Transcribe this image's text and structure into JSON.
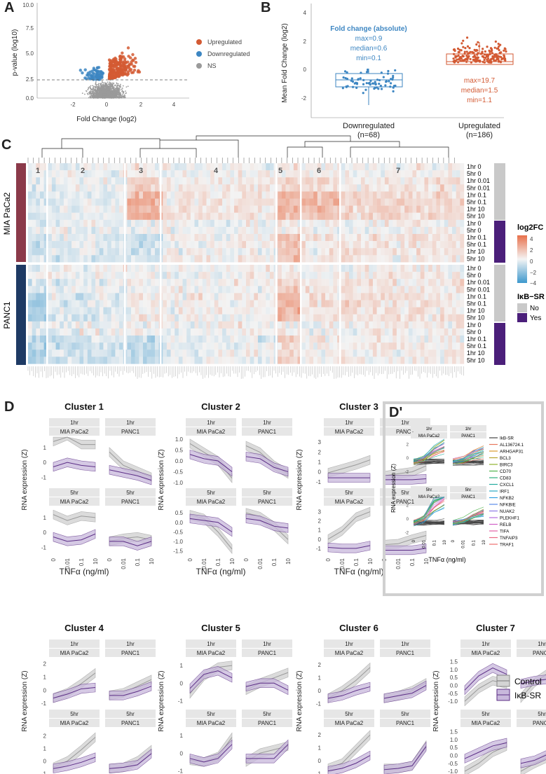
{
  "panels": {
    "A": "A",
    "B": "B",
    "C": "C",
    "D": "D",
    "Dp": "D'"
  },
  "colors": {
    "up": "#d35a33",
    "down": "#3d86c2",
    "ns": "#9a9a9a",
    "control": "#999999",
    "ikb": "#5c2e86",
    "mia": "#8b3a4a",
    "panc": "#1e3a64",
    "yes": "#4b1f7a",
    "no": "#c9c9c9"
  },
  "volcano": {
    "ylabel": "p-value (log10)",
    "xlabel": "Fold Change (log2)",
    "yticks": [
      "0.0",
      "2.5",
      "5.0",
      "7.5",
      "10.0"
    ],
    "xticks": [
      "-2",
      "0",
      "2",
      "4"
    ],
    "legend": [
      "Upregulated",
      "Downregulated",
      "NS"
    ]
  },
  "boxplot": {
    "ylabel": "Mean Fold Change (log2)",
    "yticks": [
      "4",
      "2",
      "0",
      "-2"
    ],
    "groups": [
      {
        "name": "Downregulated",
        "n": "(n=68)",
        "ann_title": "Fold change (absolute)",
        "ann": [
          "max=0.9",
          "median=0.6",
          "min=0.1"
        ]
      },
      {
        "name": "Upregulated",
        "n": "(n=186)",
        "ann_title": "",
        "ann": [
          "max=19.7",
          "median=1.5",
          "min=1.1"
        ]
      }
    ]
  },
  "heatmap": {
    "clusters": [
      "1",
      "2",
      "3",
      "4",
      "5",
      "6",
      "7"
    ],
    "mia_label": "MIA PaCa2",
    "panc_label": "PANC1",
    "row_labels": [
      "1hr 0",
      "5hr 0",
      "1hr 0.01",
      "5hr 0.01",
      "1hr 0.1",
      "5hr 0.1",
      "1hr 10",
      "5hr 10",
      "1hr 0",
      "5hr 0",
      "1hr 0.1",
      "5hr 0.1",
      "1hr 10",
      "5hr 10"
    ],
    "legend_title": "log2FC",
    "legend_ticks": [
      "4",
      "2",
      "0",
      "−2",
      "−4"
    ],
    "ikb_title": "IκB−SR",
    "ikb_levels": [
      "No",
      "Yes"
    ]
  },
  "clusters": {
    "ylabel": "RNA expression (Z)",
    "xlabel": "TNFα (ng/ml)",
    "xticks": [
      "0",
      "0.01",
      "0.1",
      "10"
    ],
    "strips": {
      "t1": "1hr",
      "t5": "5hr",
      "mia": "MIA PaCa2",
      "panc": "PANC1"
    },
    "titles": [
      "Cluster 1",
      "Cluster 2",
      "Cluster 3",
      "Cluster 4",
      "Cluster 5",
      "Cluster 6",
      "Cluster 7"
    ],
    "yticks": [
      [
        [
          "1",
          "0",
          "-1"
        ],
        [
          "1",
          "0",
          "-1"
        ]
      ],
      [
        [
          "1.0",
          "0.5",
          "0.0",
          "-0.5",
          "-1.0"
        ],
        [
          "0.5",
          "0.0",
          "-0.5",
          "-1.0",
          "-1.5"
        ]
      ],
      [
        [
          "3",
          "2",
          "1",
          "0",
          "-1"
        ],
        [
          "3",
          "2",
          "1",
          "0",
          "-1"
        ]
      ],
      [
        [
          "2",
          "1",
          "0",
          "-1"
        ],
        [
          "2",
          "1",
          "0",
          "-1"
        ]
      ],
      [
        [
          "1",
          "0",
          "-1"
        ],
        [
          "1",
          "0",
          "-1"
        ]
      ],
      [
        [
          "2",
          "1",
          "0",
          "-1"
        ],
        [
          "2",
          "1",
          "0",
          "-1"
        ]
      ],
      [
        [
          "1.5",
          "1.0",
          "0.5",
          "0.0",
          "-0.5",
          "-1.0"
        ],
        [
          "1.5",
          "1.0",
          "0.5",
          "0.0",
          "-0.5",
          "-1.0"
        ]
      ]
    ],
    "legend": [
      "Control",
      "IκB-SR"
    ]
  },
  "dprime": {
    "ylabel": "RNA expression (Z)",
    "xlabel": "TNFα (ng/ml)",
    "yticks": [
      "2",
      "0",
      "-2"
    ],
    "genes": [
      "IkB-SR",
      "AL136724.1",
      "ARHGAP31",
      "BCL3",
      "BIRC3",
      "CD70",
      "CD83",
      "CXCL1",
      "IRF1",
      "NFKB2",
      "NFKBIE",
      "NUAK2",
      "PLEKHF1",
      "RELB",
      "TIFA",
      "TNFAIP3",
      "TRAF1"
    ],
    "gene_colors": [
      "#444444",
      "#e8765c",
      "#d89a2b",
      "#b5a42a",
      "#8fb22e",
      "#4db04a",
      "#2fae7a",
      "#23ab9e",
      "#27a8c2",
      "#2f9ee0",
      "#5b8be8",
      "#8c78e6",
      "#b56adf",
      "#d160c6",
      "#e35fa4",
      "#ea6784",
      "#ee6f6f"
    ]
  }
}
